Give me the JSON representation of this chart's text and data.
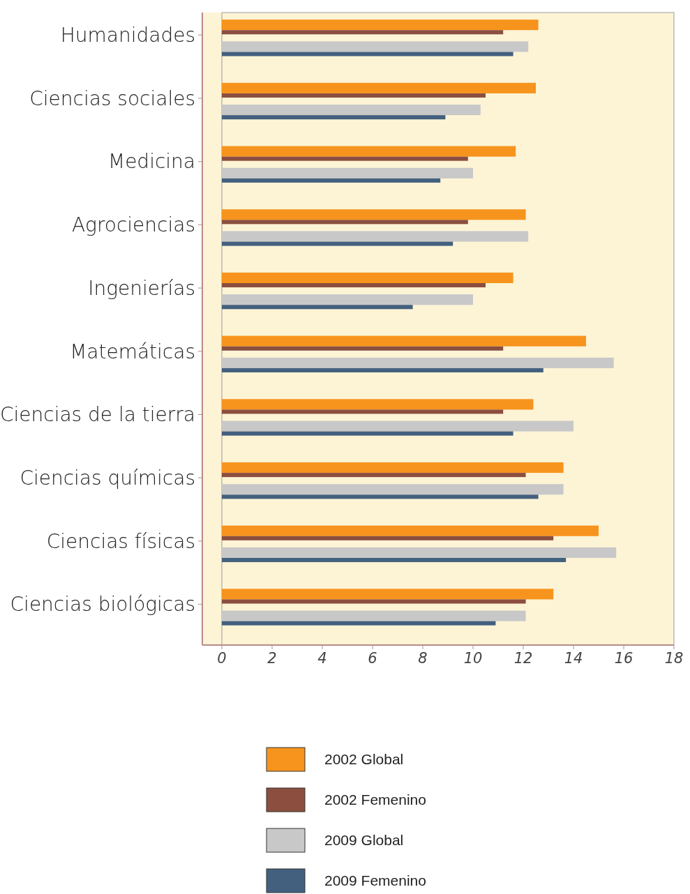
{
  "chart_data": {
    "type": "bar",
    "orientation": "horizontal",
    "categories": [
      "Humanidades",
      "Ciencias sociales",
      "Medicina",
      "Agrociencias",
      "Ingenierías",
      "Matemáticas",
      "Ciencias de la tierra",
      "Ciencias químicas",
      "Ciencias físicas",
      "Ciencias biológicas"
    ],
    "series": [
      {
        "name": "2002 Global",
        "color": "#f7941d",
        "values": [
          12.6,
          12.5,
          11.7,
          12.1,
          11.6,
          14.5,
          12.4,
          13.6,
          15.0,
          13.2
        ]
      },
      {
        "name": "2002 Femenino",
        "color": "#8b4e3f",
        "values": [
          11.2,
          10.5,
          9.8,
          9.8,
          10.5,
          11.2,
          11.2,
          12.1,
          13.2,
          12.1
        ]
      },
      {
        "name": "2009 Global",
        "color": "#c8c8c8",
        "values": [
          12.2,
          10.3,
          10.0,
          12.2,
          10.0,
          15.6,
          14.0,
          13.6,
          15.7,
          12.1
        ]
      },
      {
        "name": "2009 Femenino",
        "color": "#44607f",
        "values": [
          11.6,
          8.9,
          8.7,
          9.2,
          7.6,
          12.8,
          11.6,
          12.6,
          13.7,
          10.9
        ]
      }
    ],
    "xlim": [
      0,
      18
    ],
    "xticks": [
      0,
      2,
      4,
      6,
      8,
      10,
      12,
      14,
      16,
      18
    ],
    "legend": "bottom",
    "grid": false
  }
}
